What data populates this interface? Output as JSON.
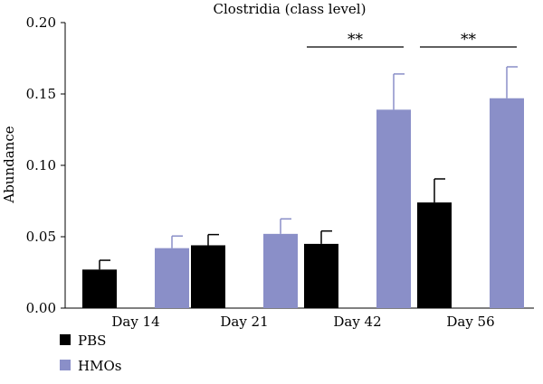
{
  "chart_data": {
    "type": "bar",
    "title": "Clostridia (class level)",
    "ylabel": "Abundance",
    "xlabel": "",
    "categories": [
      "Day 14",
      "Day 21",
      "Day 42",
      "Day 56"
    ],
    "ylim": [
      0,
      0.2
    ],
    "yticks": [
      "0.00",
      "0.05",
      "0.10",
      "0.15",
      "0.20"
    ],
    "series": [
      {
        "name": "PBS",
        "color": "#000000",
        "values": [
          0.027,
          0.044,
          0.045,
          0.074
        ],
        "errors": [
          0.0065,
          0.0075,
          0.009,
          0.0165
        ]
      },
      {
        "name": "HMOs",
        "color": "#8a8fc8",
        "values": [
          0.042,
          0.052,
          0.139,
          0.147
        ],
        "errors": [
          0.0085,
          0.0105,
          0.025,
          0.022
        ]
      }
    ],
    "annotations": [
      {
        "category": "Day 42",
        "label": "**"
      },
      {
        "category": "Day 56",
        "label": "**"
      }
    ],
    "grid": false,
    "legend": "bottom-left"
  }
}
